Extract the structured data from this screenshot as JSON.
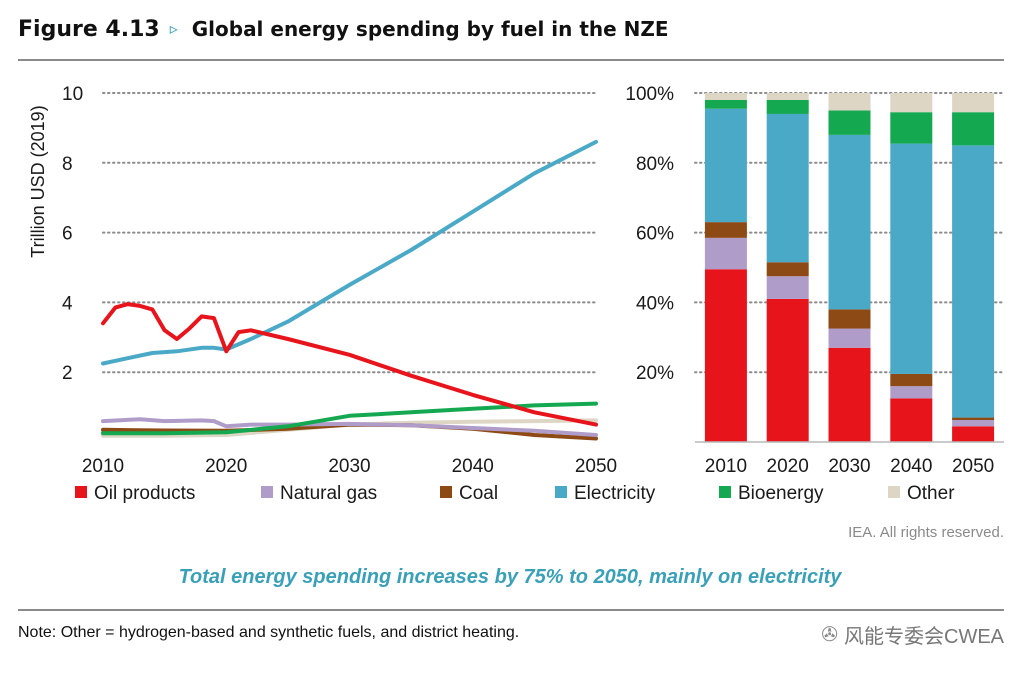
{
  "figure": {
    "label": "Figure 4.13",
    "arrow_icon": "▹",
    "title": "Global energy spending by fuel in the NZE"
  },
  "chart_data": [
    {
      "type": "line",
      "ylabel": "Trillion USD (2019)",
      "xlabel": "",
      "xlim": [
        2010,
        2050
      ],
      "ylim": [
        0,
        10
      ],
      "xticks": [
        2010,
        2020,
        2030,
        2040,
        2050
      ],
      "yticks": [
        2,
        4,
        6,
        8,
        10
      ],
      "grid": "horizontal dotted",
      "series": [
        {
          "name": "Oil products",
          "color": "#e8141c",
          "x": [
            2010,
            2011,
            2012,
            2013,
            2014,
            2015,
            2016,
            2017,
            2018,
            2019,
            2020,
            2021,
            2022,
            2025,
            2030,
            2035,
            2040,
            2045,
            2050
          ],
          "y": [
            3.4,
            3.85,
            3.95,
            3.9,
            3.8,
            3.2,
            2.95,
            3.25,
            3.6,
            3.55,
            2.6,
            3.15,
            3.2,
            2.95,
            2.5,
            1.9,
            1.35,
            0.85,
            0.5
          ]
        },
        {
          "name": "Natural gas",
          "color": "#b09cc8",
          "x": [
            2010,
            2013,
            2015,
            2018,
            2019,
            2020,
            2022,
            2025,
            2030,
            2035,
            2040,
            2045,
            2050
          ],
          "y": [
            0.6,
            0.65,
            0.6,
            0.62,
            0.6,
            0.45,
            0.5,
            0.5,
            0.52,
            0.48,
            0.4,
            0.32,
            0.2
          ]
        },
        {
          "name": "Coal",
          "color": "#8e4a14",
          "x": [
            2010,
            2015,
            2020,
            2025,
            2030,
            2035,
            2040,
            2045,
            2050
          ],
          "y": [
            0.35,
            0.33,
            0.32,
            0.38,
            0.5,
            0.48,
            0.38,
            0.2,
            0.1
          ]
        },
        {
          "name": "Electricity",
          "color": "#4ba9c8",
          "x": [
            2010,
            2012,
            2014,
            2016,
            2018,
            2019,
            2020,
            2022,
            2025,
            2030,
            2035,
            2040,
            2045,
            2050
          ],
          "y": [
            2.25,
            2.4,
            2.55,
            2.6,
            2.7,
            2.7,
            2.65,
            2.95,
            3.45,
            4.5,
            5.5,
            6.6,
            7.7,
            8.6
          ]
        },
        {
          "name": "Bioenergy",
          "color": "#14a850",
          "x": [
            2010,
            2015,
            2020,
            2025,
            2030,
            2035,
            2040,
            2045,
            2050
          ],
          "y": [
            0.25,
            0.25,
            0.28,
            0.45,
            0.75,
            0.85,
            0.95,
            1.05,
            1.1
          ]
        },
        {
          "name": "Other",
          "color": "#ded6c4",
          "x": [
            2010,
            2015,
            2020,
            2025,
            2030,
            2035,
            2040,
            2045,
            2050
          ],
          "y": [
            0.18,
            0.18,
            0.2,
            0.35,
            0.5,
            0.55,
            0.58,
            0.6,
            0.62
          ]
        }
      ]
    },
    {
      "type": "bar",
      "stacked": true,
      "categories": [
        "2010",
        "2020",
        "2030",
        "2040",
        "2050"
      ],
      "ylim": [
        0,
        100
      ],
      "yticks": [
        20,
        40,
        60,
        80,
        100
      ],
      "ytick_suffix": "%",
      "grid": "horizontal dotted",
      "series": [
        {
          "name": "Oil products",
          "color": "#e8141c",
          "values": [
            49.5,
            41,
            27,
            12.5,
            4.5
          ]
        },
        {
          "name": "Natural gas",
          "color": "#b09cc8",
          "values": [
            9,
            6.5,
            5.5,
            3.5,
            1.8
          ]
        },
        {
          "name": "Coal",
          "color": "#8e4a14",
          "values": [
            4.5,
            4,
            5.5,
            3.5,
            0.7
          ]
        },
        {
          "name": "Electricity",
          "color": "#4ba9c8",
          "values": [
            32.5,
            42.5,
            50,
            66,
            78
          ]
        },
        {
          "name": "Bioenergy",
          "color": "#14a850",
          "values": [
            2.5,
            4,
            7,
            9,
            9.5
          ]
        },
        {
          "name": "Other",
          "color": "#ded6c4",
          "values": [
            2,
            2,
            5,
            5.5,
            5.5
          ]
        }
      ]
    }
  ],
  "copyright": "IEA. All rights reserved.",
  "caption": "Total energy spending increases by 75% to 2050, mainly on electricity",
  "note": "Note: Other = hydrogen-based and synthetic fuels, and district heating.",
  "watermark": {
    "icon": "wechat-icon",
    "glyph": "✇",
    "text": "风能专委会CWEA"
  }
}
